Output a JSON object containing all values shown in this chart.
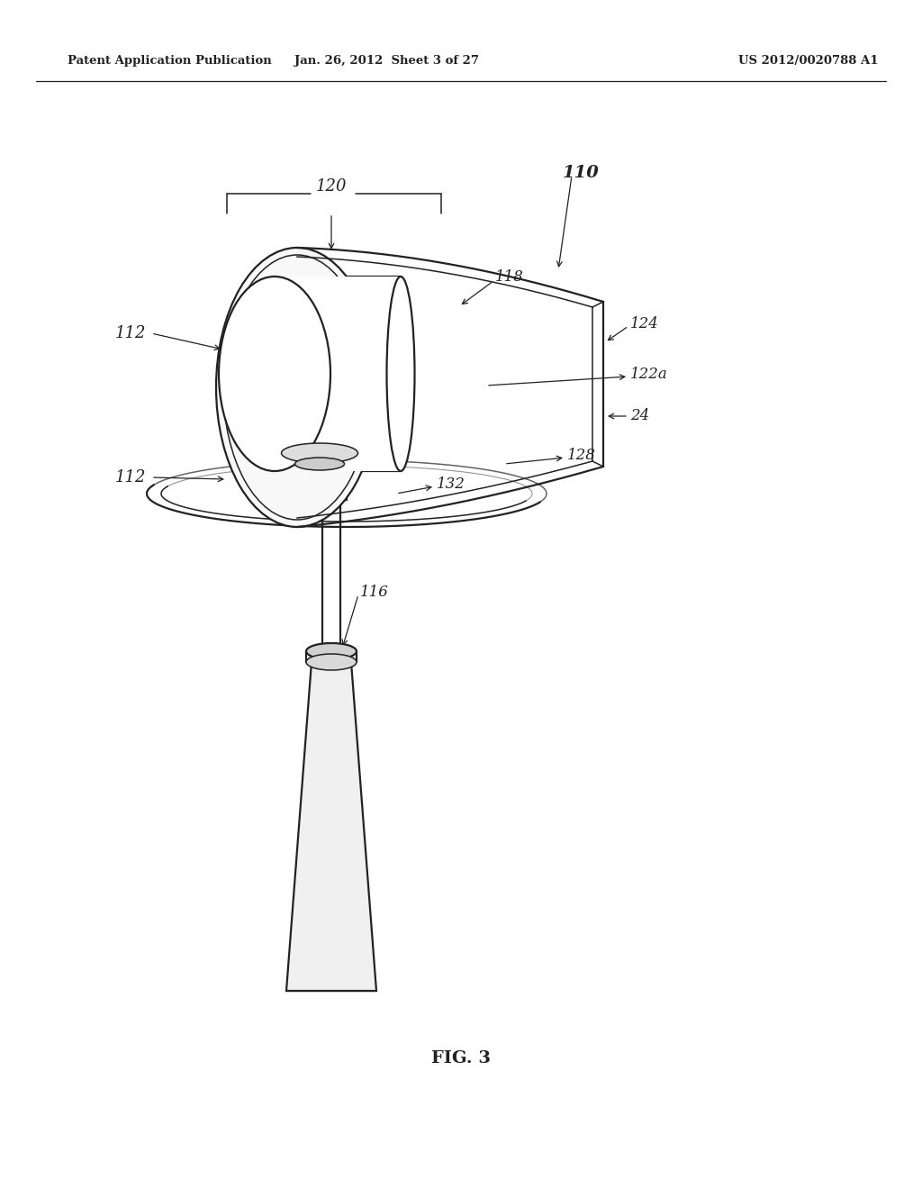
{
  "bg_color": "#ffffff",
  "line_color": "#222222",
  "header_left": "Patent Application Publication",
  "header_mid": "Jan. 26, 2012  Sheet 3 of 27",
  "header_right": "US 2012/0020788 A1",
  "fig_label": "FIG. 3",
  "lw_main": 1.6,
  "lw_thin": 1.1,
  "lw_leader": 0.9
}
